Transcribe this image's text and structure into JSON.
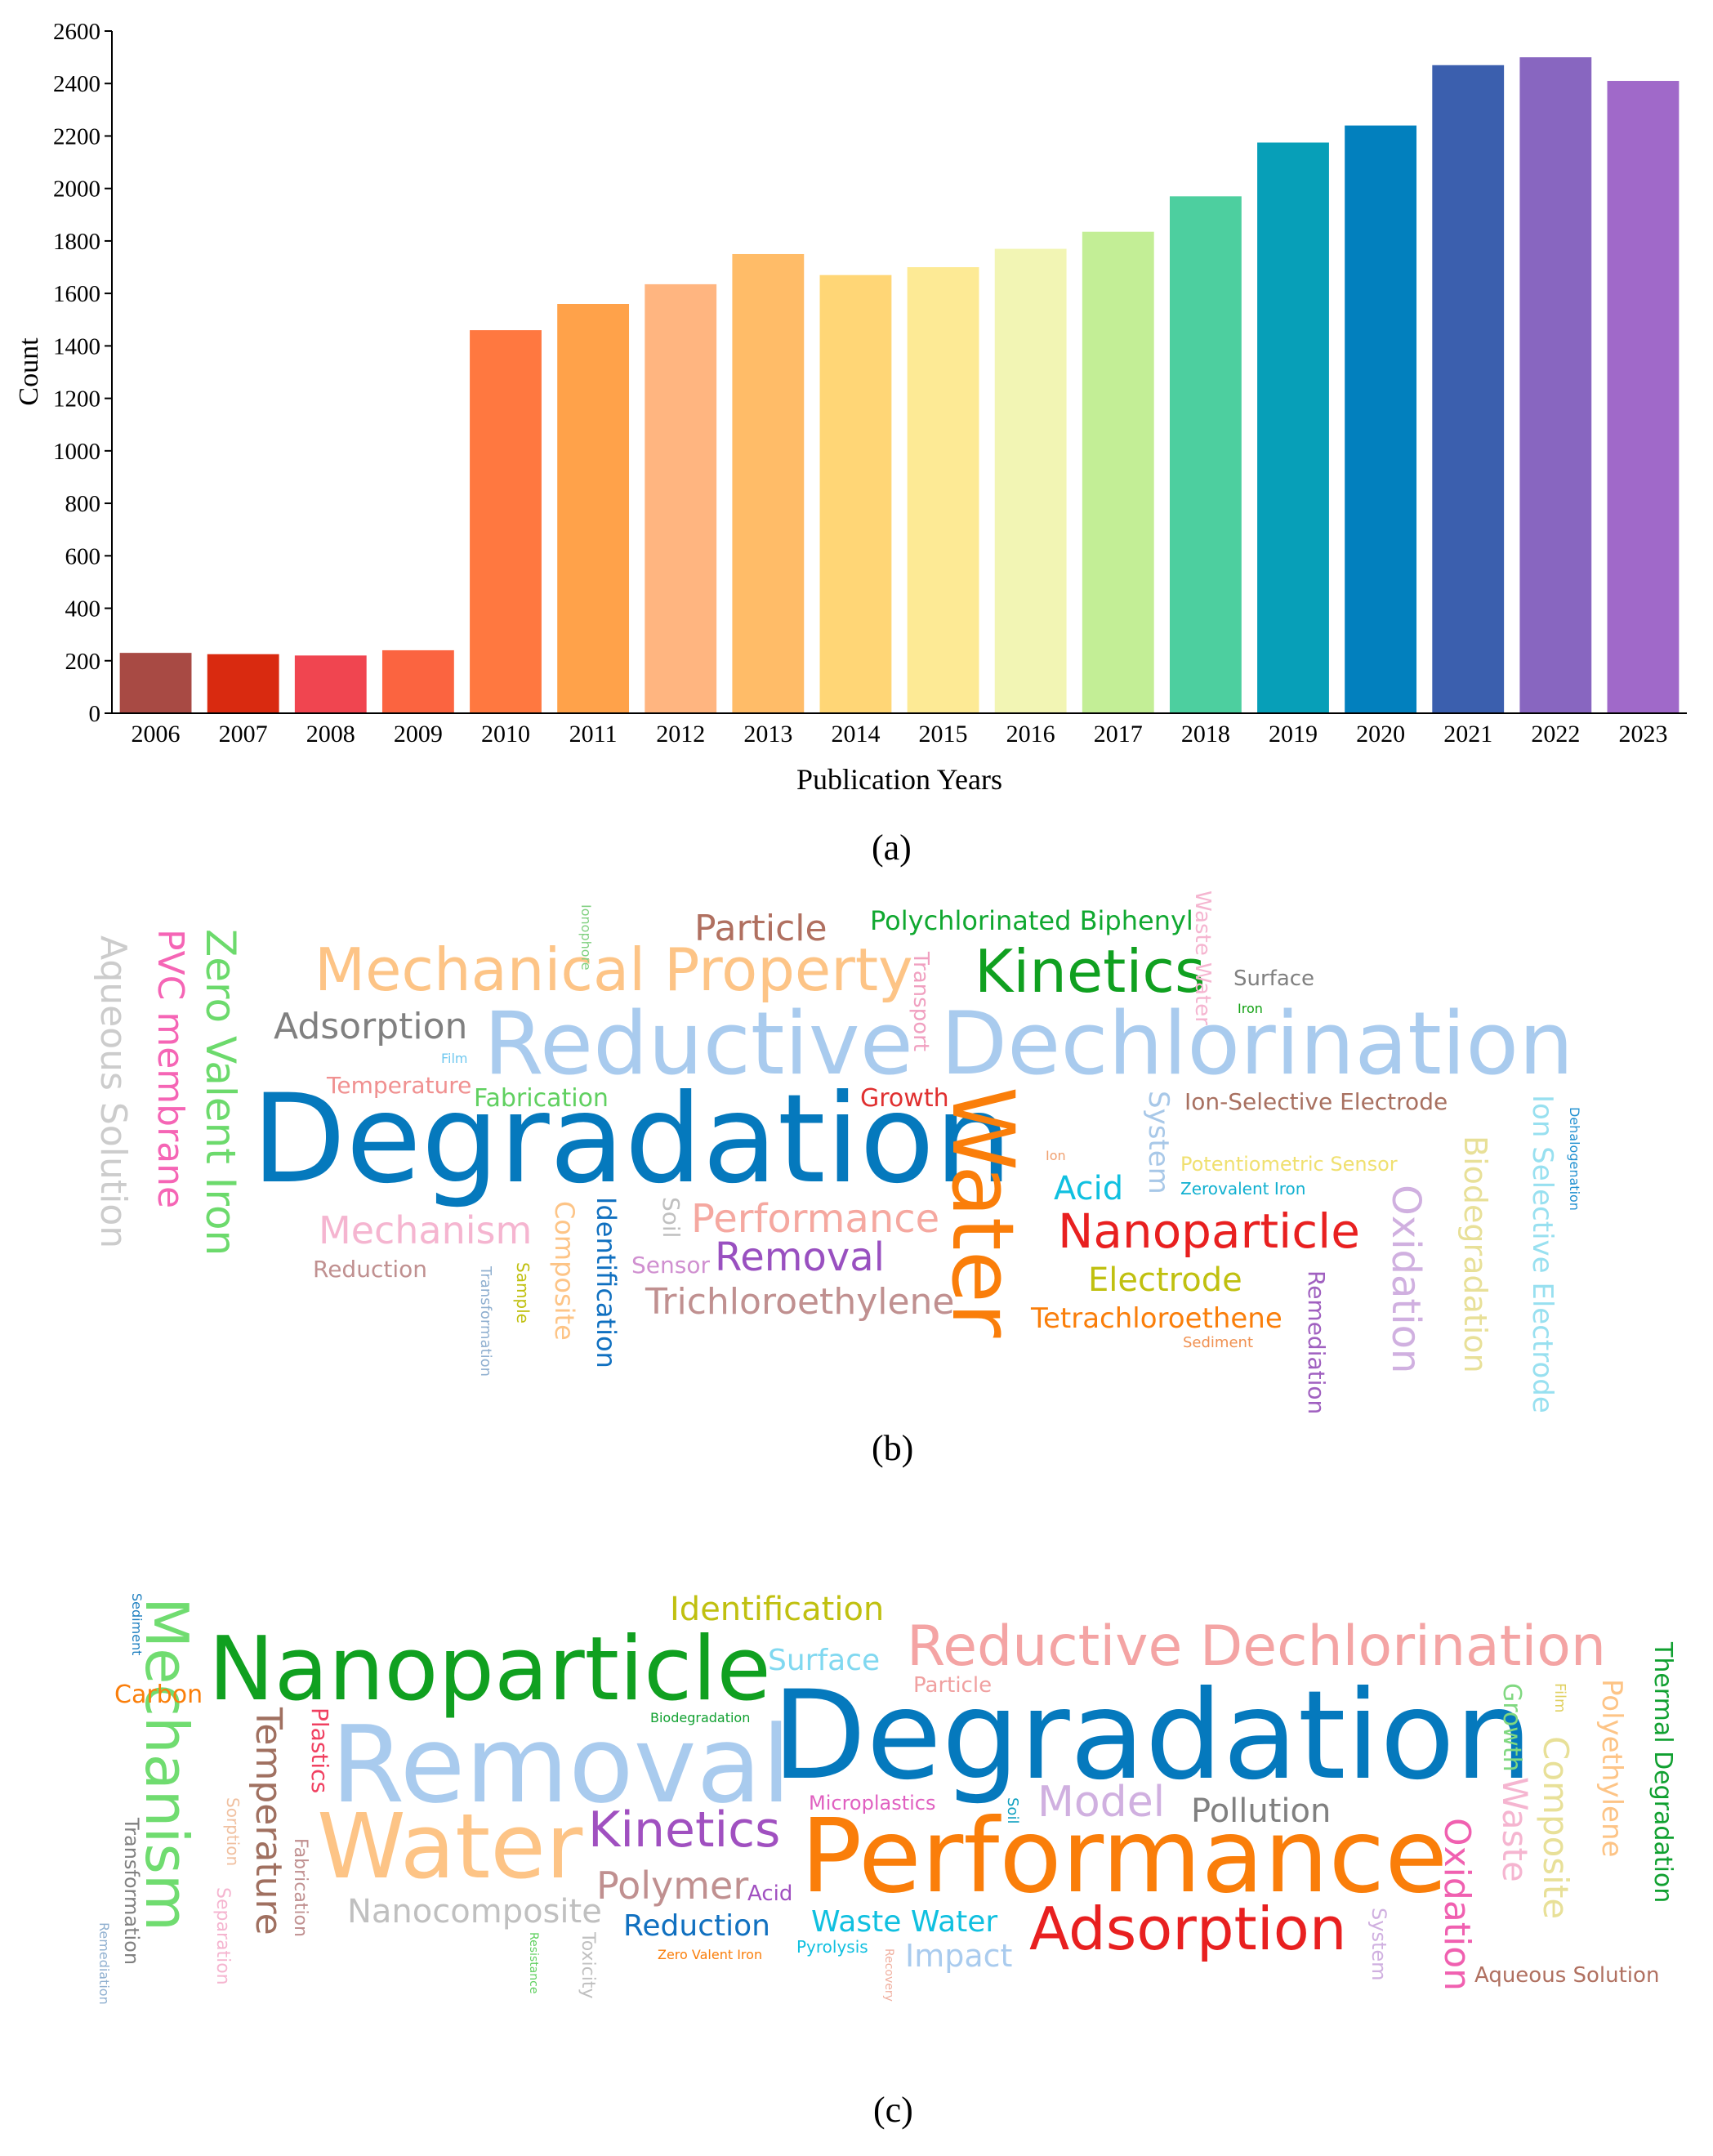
{
  "chart_data": {
    "type": "bar",
    "title": "",
    "xlabel": "Publication Years",
    "ylabel": "Count",
    "ylim": [
      0,
      2600
    ],
    "yticks": [
      0,
      200,
      400,
      600,
      800,
      1000,
      1200,
      1400,
      1600,
      1800,
      2000,
      2200,
      2400,
      2600
    ],
    "categories": [
      "2006",
      "2007",
      "2008",
      "2009",
      "2010",
      "2011",
      "2012",
      "2013",
      "2014",
      "2015",
      "2016",
      "2017",
      "2018",
      "2019",
      "2020",
      "2021",
      "2022",
      "2023"
    ],
    "values": [
      230,
      225,
      220,
      240,
      1460,
      1560,
      1635,
      1750,
      1670,
      1700,
      1770,
      1835,
      1970,
      2175,
      2240,
      2470,
      2500,
      2410
    ],
    "colors": [
      "#a84a44",
      "#d92a10",
      "#f04550",
      "#fb6440",
      "#ff7840",
      "#ffa24a",
      "#ffb580",
      "#ffbc68",
      "#ffd676",
      "#fdea95",
      "#f2f5b4",
      "#c3ee96",
      "#4dcf9f",
      "#079fb8",
      "#0280be",
      "#3b5fae",
      "#8866c0",
      "#a069c9"
    ],
    "grid": false,
    "legend": "none"
  },
  "labels": {
    "a": "(a)",
    "b": "(b)",
    "c": "(c)"
  },
  "cloud_b": [
    {
      "text": "Aqueous Solution",
      "color": "#cccccc"
    },
    {
      "text": "PVC membrane",
      "color": "#f565b5"
    },
    {
      "text": "Zero Valent Iron",
      "color": "#6cda6c"
    },
    {
      "text": "Mechanical Property",
      "color": "#fdc486"
    },
    {
      "text": "Adsorption",
      "color": "#808080"
    },
    {
      "text": "Particle",
      "color": "#b07060"
    },
    {
      "text": "Ionophore",
      "color": "#80d080"
    },
    {
      "text": "Polychlorinated Biphenyl",
      "color": "#10a830"
    },
    {
      "text": "Transport",
      "color": "#f0a0c0"
    },
    {
      "text": "Kinetics",
      "color": "#10a020"
    },
    {
      "text": "Waste Water",
      "color": "#f5b5d0"
    },
    {
      "text": "Surface",
      "color": "#808080"
    },
    {
      "text": "Iron",
      "color": "#10a010"
    },
    {
      "text": "Reductive Dechlorination",
      "color": "#a9cbee"
    },
    {
      "text": "Film",
      "color": "#70c8f0"
    },
    {
      "text": "Temperature",
      "color": "#f09090"
    },
    {
      "text": "Fabrication",
      "color": "#60d060"
    },
    {
      "text": "Growth",
      "color": "#e03030"
    },
    {
      "text": "Degradation",
      "color": "#0579bd"
    },
    {
      "text": "Water",
      "color": "#fa7e0a"
    },
    {
      "text": "System",
      "color": "#a8c8e8"
    },
    {
      "text": "Ion-Selective Electrode",
      "color": "#a87060"
    },
    {
      "text": "Ion Selective Electrode",
      "color": "#98e0f0"
    },
    {
      "text": "Dehalogenation",
      "color": "#2090d0"
    },
    {
      "text": "Ion",
      "color": "#f0a070"
    },
    {
      "text": "Potentiometric Sensor",
      "color": "#f0e070"
    },
    {
      "text": "Zerovalent Iron",
      "color": "#10b0d0"
    },
    {
      "text": "Acid",
      "color": "#10c0e0"
    },
    {
      "text": "Biodegradation",
      "color": "#e8e098"
    },
    {
      "text": "Mechanism",
      "color": "#f5b5d0"
    },
    {
      "text": "Reduction",
      "color": "#c09090"
    },
    {
      "text": "Composite",
      "color": "#fdc486"
    },
    {
      "text": "Identification",
      "color": "#1070c0"
    },
    {
      "text": "Soil",
      "color": "#c0c0c0"
    },
    {
      "text": "Performance",
      "color": "#f5a8a0"
    },
    {
      "text": "Nanoparticle",
      "color": "#e82020"
    },
    {
      "text": "Oxidation",
      "color": "#d0b0e0"
    },
    {
      "text": "Sensor",
      "color": "#d090d0"
    },
    {
      "text": "Removal",
      "color": "#9950c0"
    },
    {
      "text": "Electrode",
      "color": "#c0c010"
    },
    {
      "text": "Transformation",
      "color": "#90b0d0"
    },
    {
      "text": "Sample",
      "color": "#c0c010"
    },
    {
      "text": "Trichloroethylene",
      "color": "#c09090"
    },
    {
      "text": "Tetrachloroethene",
      "color": "#fa7e0a"
    },
    {
      "text": "Sediment",
      "color": "#f09050"
    },
    {
      "text": "Remediation",
      "color": "#a060c0"
    }
  ],
  "cloud_c": [
    {
      "text": "Sediment",
      "color": "#2080c0"
    },
    {
      "text": "Mechanism",
      "color": "#70dc70"
    },
    {
      "text": "Carbon",
      "color": "#fa7e0a"
    },
    {
      "text": "Identification",
      "color": "#c0c010"
    },
    {
      "text": "Nanoparticle",
      "color": "#10a020"
    },
    {
      "text": "Surface",
      "color": "#80d8f0"
    },
    {
      "text": "Reductive Dechlorination",
      "color": "#f4a4a4"
    },
    {
      "text": "Particle",
      "color": "#f0a0a0"
    },
    {
      "text": "Thermal Degradation",
      "color": "#10a030"
    },
    {
      "text": "Temperature",
      "color": "#a07060"
    },
    {
      "text": "Plastics",
      "color": "#f04060"
    },
    {
      "text": "Biodegradation",
      "color": "#10a030"
    },
    {
      "text": "Removal",
      "color": "#a9cbee"
    },
    {
      "text": "Degradation",
      "color": "#0579bd"
    },
    {
      "text": "Growth",
      "color": "#80d880"
    },
    {
      "text": "Film",
      "color": "#e0d060"
    },
    {
      "text": "Polyethylene",
      "color": "#fdc486"
    },
    {
      "text": "Sorption",
      "color": "#f0c0a0"
    },
    {
      "text": "Composite",
      "color": "#e8e098"
    },
    {
      "text": "Waste",
      "color": "#f5b5d0"
    },
    {
      "text": "Transformation",
      "color": "#808080"
    },
    {
      "text": "Fabrication",
      "color": "#c09090"
    },
    {
      "text": "Microplastics",
      "color": "#e060c0"
    },
    {
      "text": "Soil",
      "color": "#10a0c0"
    },
    {
      "text": "Model",
      "color": "#d0b0e0"
    },
    {
      "text": "Pollution",
      "color": "#808080"
    },
    {
      "text": "Water",
      "color": "#fdc486"
    },
    {
      "text": "Kinetics",
      "color": "#a050c0"
    },
    {
      "text": "Performance",
      "color": "#fa7e0a"
    },
    {
      "text": "Oxidation",
      "color": "#f060b0"
    },
    {
      "text": "Separation",
      "color": "#f5b5d0"
    },
    {
      "text": "Polymer",
      "color": "#c09090"
    },
    {
      "text": "Acid",
      "color": "#a050c0"
    },
    {
      "text": "Nanocomposite",
      "color": "#c0c0c0"
    },
    {
      "text": "Reduction",
      "color": "#1070c0"
    },
    {
      "text": "Waste Water",
      "color": "#10c0e0"
    },
    {
      "text": "Adsorption",
      "color": "#e82020"
    },
    {
      "text": "System",
      "color": "#d0b0e0"
    },
    {
      "text": "Remediation",
      "color": "#90b0d0"
    },
    {
      "text": "Resistance",
      "color": "#60d060"
    },
    {
      "text": "Toxicity",
      "color": "#c0c0c0"
    },
    {
      "text": "Zero Valent Iron",
      "color": "#fa7e0a"
    },
    {
      "text": "Pyrolysis",
      "color": "#10c0e0"
    },
    {
      "text": "Recovery",
      "color": "#f0b0a0"
    },
    {
      "text": "Impact",
      "color": "#a9cbee"
    },
    {
      "text": "Aqueous Solution",
      "color": "#b07060"
    }
  ]
}
